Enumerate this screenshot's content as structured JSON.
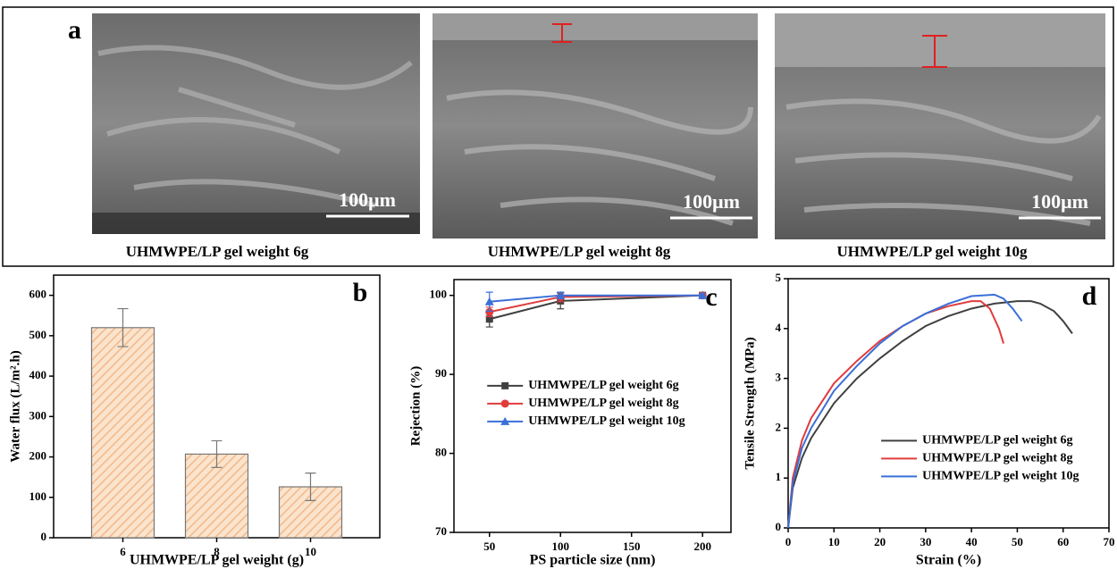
{
  "panel_a": {
    "label": "a",
    "images": [
      {
        "caption": "UHMWPE/LP gel weight 6g",
        "scale_bar": "100μm"
      },
      {
        "caption": "UHMWPE/LP gel weight 8g",
        "scale_bar": "100μm"
      },
      {
        "caption": "UHMWPE/LP gel weight 10g",
        "scale_bar": "100μm"
      }
    ]
  },
  "chart_data": [
    {
      "type": "bar",
      "label": "b",
      "categories": [
        "6",
        "8",
        "10"
      ],
      "values": [
        520,
        207,
        126
      ],
      "errors": [
        47,
        33,
        34
      ],
      "color": "#f0b98a",
      "hatch": true,
      "ylim": [
        0,
        650
      ],
      "yticks": [
        0,
        100,
        200,
        300,
        400,
        500,
        600
      ],
      "xlabel": "UHMWPE/LP gel weight (g)",
      "ylabel": "Water flux (L/m².h)"
    },
    {
      "type": "line",
      "label": "c",
      "x": [
        50,
        100,
        200
      ],
      "xlim": [
        25,
        220
      ],
      "xticks": [
        50,
        100,
        150,
        200
      ],
      "ylim": [
        70,
        102
      ],
      "yticks": [
        70,
        80,
        90,
        100
      ],
      "legend": "center",
      "xlabel": "PS particle size (nm)",
      "ylabel": "Rejection (%)",
      "series": [
        {
          "name": "UHMWPE/LP gel weight 6g",
          "color": "#404040",
          "marker": "square",
          "values": [
            97,
            99.3,
            100
          ],
          "errors": [
            1.0,
            1.0,
            0.2
          ]
        },
        {
          "name": "UHMWPE/LP gel weight 8g",
          "color": "#e03c3c",
          "marker": "circle",
          "values": [
            97.9,
            99.8,
            100
          ],
          "errors": [
            0.6,
            0.6,
            0.2
          ]
        },
        {
          "name": "UHMWPE/LP gel weight 10g",
          "color": "#3a6fd8",
          "marker": "triangle",
          "values": [
            99.2,
            100,
            100
          ],
          "errors": [
            1.2,
            0.4,
            0.2
          ]
        }
      ]
    },
    {
      "type": "line",
      "label": "d",
      "xlim": [
        0,
        70
      ],
      "xticks": [
        0,
        10,
        20,
        30,
        40,
        50,
        60,
        70
      ],
      "ylim": [
        0,
        5
      ],
      "yticks": [
        0,
        1,
        2,
        3,
        4,
        5
      ],
      "legend": "lower right",
      "xlabel": "Strain (%)",
      "ylabel": "Tensile Strength (MPa)",
      "series": [
        {
          "name": "UHMWPE/LP gel weight 6g",
          "color": "#404040",
          "x": [
            0,
            1,
            3,
            5,
            10,
            15,
            20,
            25,
            30,
            35,
            40,
            45,
            50,
            53,
            55,
            58,
            60,
            62
          ],
          "values": [
            0,
            0.8,
            1.4,
            1.8,
            2.5,
            3.0,
            3.4,
            3.75,
            4.05,
            4.25,
            4.4,
            4.5,
            4.55,
            4.55,
            4.5,
            4.35,
            4.15,
            3.9
          ]
        },
        {
          "name": "UHMWPE/LP gel weight 8g",
          "color": "#e03c3c",
          "x": [
            0,
            1,
            3,
            5,
            10,
            15,
            20,
            25,
            30,
            35,
            40,
            42,
            44,
            46,
            47
          ],
          "values": [
            0,
            1.0,
            1.75,
            2.2,
            2.9,
            3.35,
            3.75,
            4.05,
            4.3,
            4.45,
            4.55,
            4.55,
            4.4,
            4.0,
            3.7
          ]
        },
        {
          "name": "UHMWPE/LP gel weight 10g",
          "color": "#3a6fd8",
          "x": [
            0,
            1,
            3,
            5,
            10,
            15,
            20,
            25,
            30,
            35,
            40,
            45,
            47,
            49,
            51
          ],
          "values": [
            0,
            0.9,
            1.6,
            2.0,
            2.75,
            3.25,
            3.7,
            4.05,
            4.3,
            4.5,
            4.65,
            4.68,
            4.6,
            4.4,
            4.15
          ]
        }
      ]
    }
  ]
}
